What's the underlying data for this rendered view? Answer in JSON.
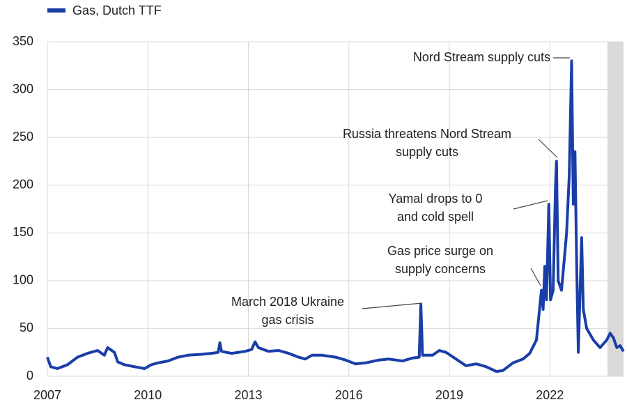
{
  "chart_data": {
    "type": "line",
    "series": [
      {
        "name": "Gas, Dutch TTF",
        "color": "#1a3ea8",
        "x": [
          2007.0,
          2007.1,
          2007.3,
          2007.6,
          2007.9,
          2008.2,
          2008.5,
          2008.7,
          2008.8,
          2009.0,
          2009.1,
          2009.3,
          2009.6,
          2009.9,
          2010.1,
          2010.3,
          2010.6,
          2010.9,
          2011.2,
          2011.6,
          2011.9,
          2012.1,
          2012.15,
          2012.2,
          2012.5,
          2012.9,
          2013.1,
          2013.2,
          2013.3,
          2013.6,
          2013.9,
          2014.2,
          2014.5,
          2014.7,
          2014.9,
          2015.2,
          2015.6,
          2015.9,
          2016.2,
          2016.5,
          2016.9,
          2017.2,
          2017.6,
          2017.9,
          2018.1,
          2018.15,
          2018.2,
          2018.5,
          2018.7,
          2018.9,
          2019.2,
          2019.5,
          2019.8,
          2020.1,
          2020.4,
          2020.6,
          2020.9,
          2021.2,
          2021.4,
          2021.6,
          2021.75,
          2021.8,
          2021.85,
          2021.9,
          2021.97,
          2022.02,
          2022.1,
          2022.17,
          2022.2,
          2022.25,
          2022.35,
          2022.45,
          2022.5,
          2022.58,
          2022.65,
          2022.7,
          2022.75,
          2022.8,
          2022.85,
          2022.88,
          2022.95,
          2023.0,
          2023.1,
          2023.3,
          2023.5,
          2023.7,
          2023.8,
          2023.9,
          2024.0,
          2024.1,
          2024.2
        ],
        "values": [
          20,
          10,
          8,
          12,
          20,
          24,
          27,
          22,
          30,
          25,
          15,
          12,
          10,
          8,
          12,
          14,
          16,
          20,
          22,
          23,
          24,
          25,
          35,
          26,
          24,
          26,
          28,
          36,
          30,
          26,
          27,
          24,
          20,
          18,
          22,
          22,
          20,
          17,
          13,
          14,
          17,
          18,
          16,
          19,
          20,
          75,
          22,
          22,
          27,
          25,
          18,
          11,
          13,
          10,
          5,
          6,
          14,
          18,
          24,
          38,
          90,
          70,
          115,
          80,
          180,
          80,
          90,
          200,
          225,
          100,
          90,
          130,
          150,
          210,
          330,
          180,
          235,
          120,
          25,
          60,
          145,
          70,
          50,
          38,
          30,
          38,
          45,
          40,
          30,
          32,
          26
        ]
      }
    ],
    "xlim": [
      2007,
      2024.2
    ],
    "xticks": [
      2007,
      2010,
      2013,
      2016,
      2019,
      2022
    ],
    "ylim": [
      0,
      350
    ],
    "yticks": [
      0,
      50,
      100,
      150,
      200,
      250,
      300,
      350
    ],
    "grid": true,
    "legend": "top-left",
    "shaded_region": [
      2023.72,
      2024.2
    ],
    "annotations": [
      {
        "lines": [
          "Nord Stream supply cuts"
        ]
      },
      {
        "lines": [
          "Russia threatens Nord Stream",
          "supply cuts"
        ]
      },
      {
        "lines": [
          "Yamal drops to 0",
          "and cold spell"
        ]
      },
      {
        "lines": [
          "Gas price surge on",
          "supply concerns"
        ]
      },
      {
        "lines": [
          "March 2018 Ukraine",
          "gas crisis"
        ]
      }
    ]
  }
}
